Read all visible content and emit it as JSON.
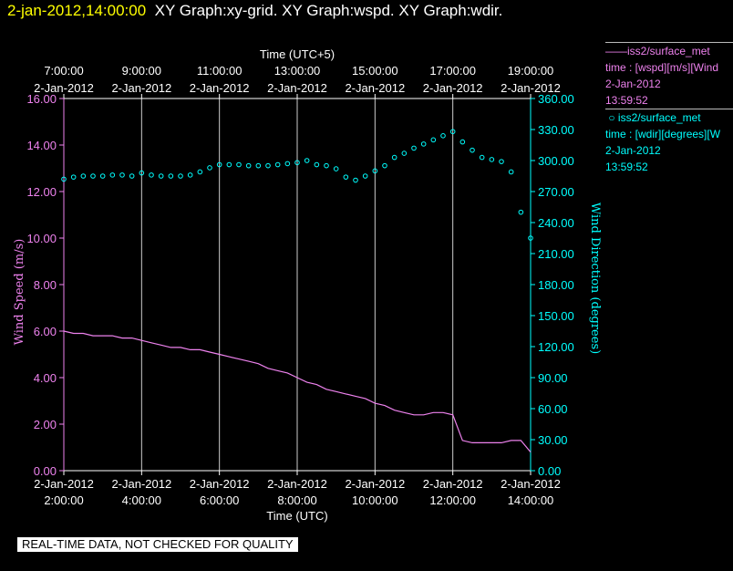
{
  "header": {
    "timestamp": "2-jan-2012,14:00:00",
    "graphs": "XY Graph:xy-grid.  XY Graph:wspd.  XY Graph:wdir."
  },
  "legend": {
    "wspd": {
      "name": "iss2/surface_met",
      "var": "time : [wspd][m/s][Wind",
      "date": "2-Jan-2012",
      "time": "13:59:52"
    },
    "wdir": {
      "name": "iss2/surface_met",
      "var": "time : [wdir][degrees][W",
      "date": "2-Jan-2012",
      "time": "13:59:52"
    }
  },
  "disclaimer": "REAL-TIME DATA, NOT CHECKED FOR QUALITY",
  "chart_data": {
    "type": "scatter",
    "title": "",
    "grid": "vertical",
    "colors": {
      "wspd": "#ee82ee",
      "wdir": "#00ffff",
      "axis_left": "#ee82ee",
      "axis_right": "#00ffff",
      "grid": "#cccccc"
    },
    "xlabel_bottom": "Time (UTC)",
    "xlabel_top": "Time (UTC+5)",
    "xlim": [
      2.0,
      14.0
    ],
    "x_ticks": [
      2,
      4,
      6,
      8,
      10,
      12,
      14
    ],
    "x_tick_dates": [
      "2-Jan-2012",
      "2-Jan-2012",
      "2-Jan-2012",
      "2-Jan-2012",
      "2-Jan-2012",
      "2-Jan-2012",
      "2-Jan-2012"
    ],
    "x_tick_times_bottom": [
      "2:00:00",
      "4:00:00",
      "6:00:00",
      "8:00:00",
      "10:00:00",
      "12:00:00",
      "14:00:00"
    ],
    "x_tick_times_top": [
      "7:00:00",
      "9:00:00",
      "11:00:00",
      "13:00:00",
      "15:00:00",
      "17:00:00",
      "19:00:00"
    ],
    "ylabel_left": "Wind Speed (m/s)",
    "ylim_left": [
      0,
      16
    ],
    "y_ticks_left": [
      "0.00",
      "2.00",
      "4.00",
      "6.00",
      "8.00",
      "10.00",
      "12.00",
      "14.00",
      "16.00"
    ],
    "ylabel_right": "Wind Direction (degrees)",
    "ylim_right": [
      0,
      360
    ],
    "y_ticks_right": [
      "0.00",
      "30.00",
      "60.00",
      "90.00",
      "120.00",
      "150.00",
      "180.00",
      "210.00",
      "240.00",
      "270.00",
      "300.00",
      "330.00",
      "360.00"
    ],
    "series": [
      {
        "key": "wspd",
        "axis": "left",
        "style": "line",
        "x": [
          2.0,
          2.25,
          2.5,
          2.75,
          3.0,
          3.25,
          3.5,
          3.75,
          4.0,
          4.25,
          4.5,
          4.75,
          5.0,
          5.25,
          5.5,
          5.75,
          6.0,
          6.25,
          6.5,
          6.75,
          7.0,
          7.25,
          7.5,
          7.75,
          8.0,
          8.25,
          8.5,
          8.75,
          9.0,
          9.25,
          9.5,
          9.75,
          10.0,
          10.25,
          10.5,
          10.75,
          11.0,
          11.25,
          11.5,
          11.75,
          12.0,
          12.25,
          12.5,
          12.75,
          13.0,
          13.25,
          13.5,
          13.75,
          14.0
        ],
        "y": [
          6.0,
          5.9,
          5.9,
          5.8,
          5.8,
          5.8,
          5.7,
          5.7,
          5.6,
          5.5,
          5.4,
          5.3,
          5.3,
          5.2,
          5.2,
          5.1,
          5.0,
          4.9,
          4.8,
          4.7,
          4.6,
          4.4,
          4.3,
          4.2,
          4.0,
          3.8,
          3.7,
          3.5,
          3.4,
          3.3,
          3.2,
          3.1,
          2.9,
          2.8,
          2.6,
          2.5,
          2.4,
          2.4,
          2.5,
          2.5,
          2.4,
          1.3,
          1.2,
          1.2,
          1.2,
          1.2,
          1.3,
          1.3,
          0.8
        ]
      },
      {
        "key": "wdir",
        "axis": "right",
        "style": "points",
        "x": [
          2.0,
          2.25,
          2.5,
          2.75,
          3.0,
          3.25,
          3.5,
          3.75,
          4.0,
          4.25,
          4.5,
          4.75,
          5.0,
          5.25,
          5.5,
          5.75,
          6.0,
          6.25,
          6.5,
          6.75,
          7.0,
          7.25,
          7.5,
          7.75,
          8.0,
          8.25,
          8.5,
          8.75,
          9.0,
          9.25,
          9.5,
          9.75,
          10.0,
          10.25,
          10.5,
          10.75,
          11.0,
          11.25,
          11.5,
          11.75,
          12.0,
          12.25,
          12.5,
          12.75,
          13.0,
          13.25,
          13.5,
          13.75,
          14.0
        ],
        "y": [
          282,
          284,
          285,
          285,
          285,
          286,
          286,
          285,
          288,
          286,
          285,
          285,
          285,
          286,
          289,
          293,
          296,
          296,
          296,
          295,
          295,
          295,
          296,
          297,
          298,
          300,
          296,
          295,
          292,
          284,
          281,
          285,
          290,
          295,
          303,
          307,
          312,
          316,
          320,
          324,
          328,
          318,
          310,
          303,
          301,
          299,
          289,
          250,
          225
        ]
      }
    ]
  }
}
